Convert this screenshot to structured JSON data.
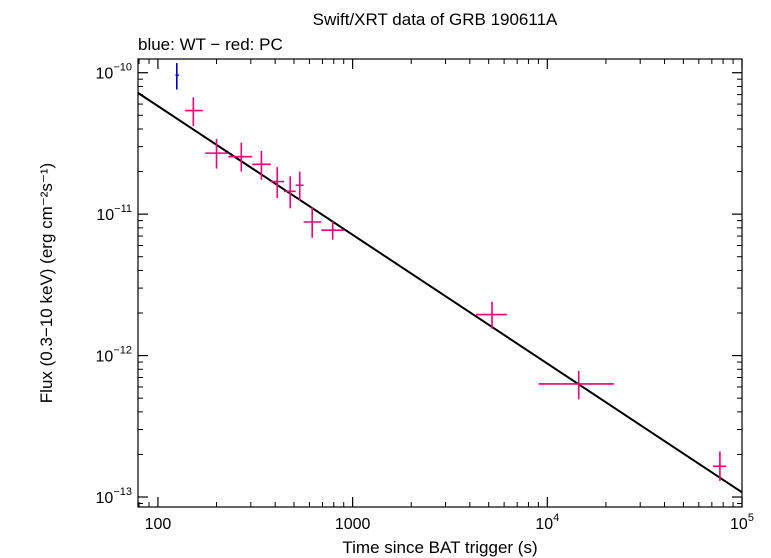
{
  "chart_data": {
    "type": "scatter",
    "title": "Swift/XRT data of GRB 190611A",
    "subtitle": "blue: WT − red: PC",
    "xlabel": "Time since BAT trigger (s)",
    "ylabel": "Flux (0.3−10 keV) (erg cm⁻²s⁻¹)",
    "x_scale": "log",
    "y_scale": "log",
    "xlim": [
      79,
      100000
    ],
    "ylim": [
      8.5e-14,
      1.25e-10
    ],
    "x_ticks": [
      {
        "value": 100,
        "label": "100"
      },
      {
        "value": 1000,
        "label": "1000"
      },
      {
        "value": 10000,
        "base": "10",
        "exp": "4"
      },
      {
        "value": 100000,
        "base": "10",
        "exp": "5"
      }
    ],
    "y_ticks": [
      {
        "value": 1e-10,
        "base": "10",
        "exp": "−10"
      },
      {
        "value": 1e-11,
        "base": "10",
        "exp": "−11"
      },
      {
        "value": 1e-12,
        "base": "10",
        "exp": "−12"
      },
      {
        "value": 1e-13,
        "base": "10",
        "exp": "−13"
      }
    ],
    "series": [
      {
        "mode": "WT",
        "color": "#0000cc",
        "points": [
          {
            "x": 125,
            "xlo": 123,
            "xhi": 128,
            "y": 9.6e-11,
            "ylo": 7.6e-11,
            "yhi": 1.17e-10
          }
        ]
      },
      {
        "mode": "PC",
        "color": "#ee0077",
        "points": [
          {
            "x": 152,
            "xlo": 138,
            "xhi": 170,
            "y": 5.4e-11,
            "ylo": 4.2e-11,
            "yhi": 6.7e-11
          },
          {
            "x": 200,
            "xlo": 175,
            "xhi": 228,
            "y": 2.7e-11,
            "ylo": 2.1e-11,
            "yhi": 3.4e-11
          },
          {
            "x": 268,
            "xlo": 230,
            "xhi": 305,
            "y": 2.55e-11,
            "ylo": 2e-11,
            "yhi": 3.2e-11
          },
          {
            "x": 340,
            "xlo": 305,
            "xhi": 380,
            "y": 2.25e-11,
            "ylo": 1.75e-11,
            "yhi": 2.8e-11
          },
          {
            "x": 410,
            "xlo": 380,
            "xhi": 445,
            "y": 1.7e-11,
            "ylo": 1.3e-11,
            "yhi": 2.15e-11
          },
          {
            "x": 478,
            "xlo": 445,
            "xhi": 510,
            "y": 1.45e-11,
            "ylo": 1.1e-11,
            "yhi": 1.85e-11
          },
          {
            "x": 535,
            "xlo": 510,
            "xhi": 560,
            "y": 1.6e-11,
            "ylo": 1.25e-11,
            "yhi": 2e-11
          },
          {
            "x": 620,
            "xlo": 560,
            "xhi": 690,
            "y": 8.8e-12,
            "ylo": 6.8e-12,
            "yhi": 1.12e-11
          },
          {
            "x": 790,
            "xlo": 690,
            "xhi": 900,
            "y": 7.7e-12,
            "ylo": 6.6e-12,
            "yhi": 8.9e-12
          },
          {
            "x": 5200,
            "xlo": 4300,
            "xhi": 6200,
            "y": 1.95e-12,
            "ylo": 1.55e-12,
            "yhi": 2.4e-12
          },
          {
            "x": 14500,
            "xlo": 9000,
            "xhi": 22000,
            "y": 6.3e-13,
            "ylo": 4.9e-13,
            "yhi": 7.8e-13
          },
          {
            "x": 77000,
            "xlo": 71000,
            "xhi": 83000,
            "y": 1.65e-13,
            "ylo": 1.3e-13,
            "yhi": 2.1e-13
          }
        ]
      }
    ],
    "model_line": {
      "color": "#000000",
      "points": [
        {
          "x": 79,
          "y": 7.2e-11
        },
        {
          "x": 100000,
          "y": 1.08e-13
        }
      ]
    }
  }
}
